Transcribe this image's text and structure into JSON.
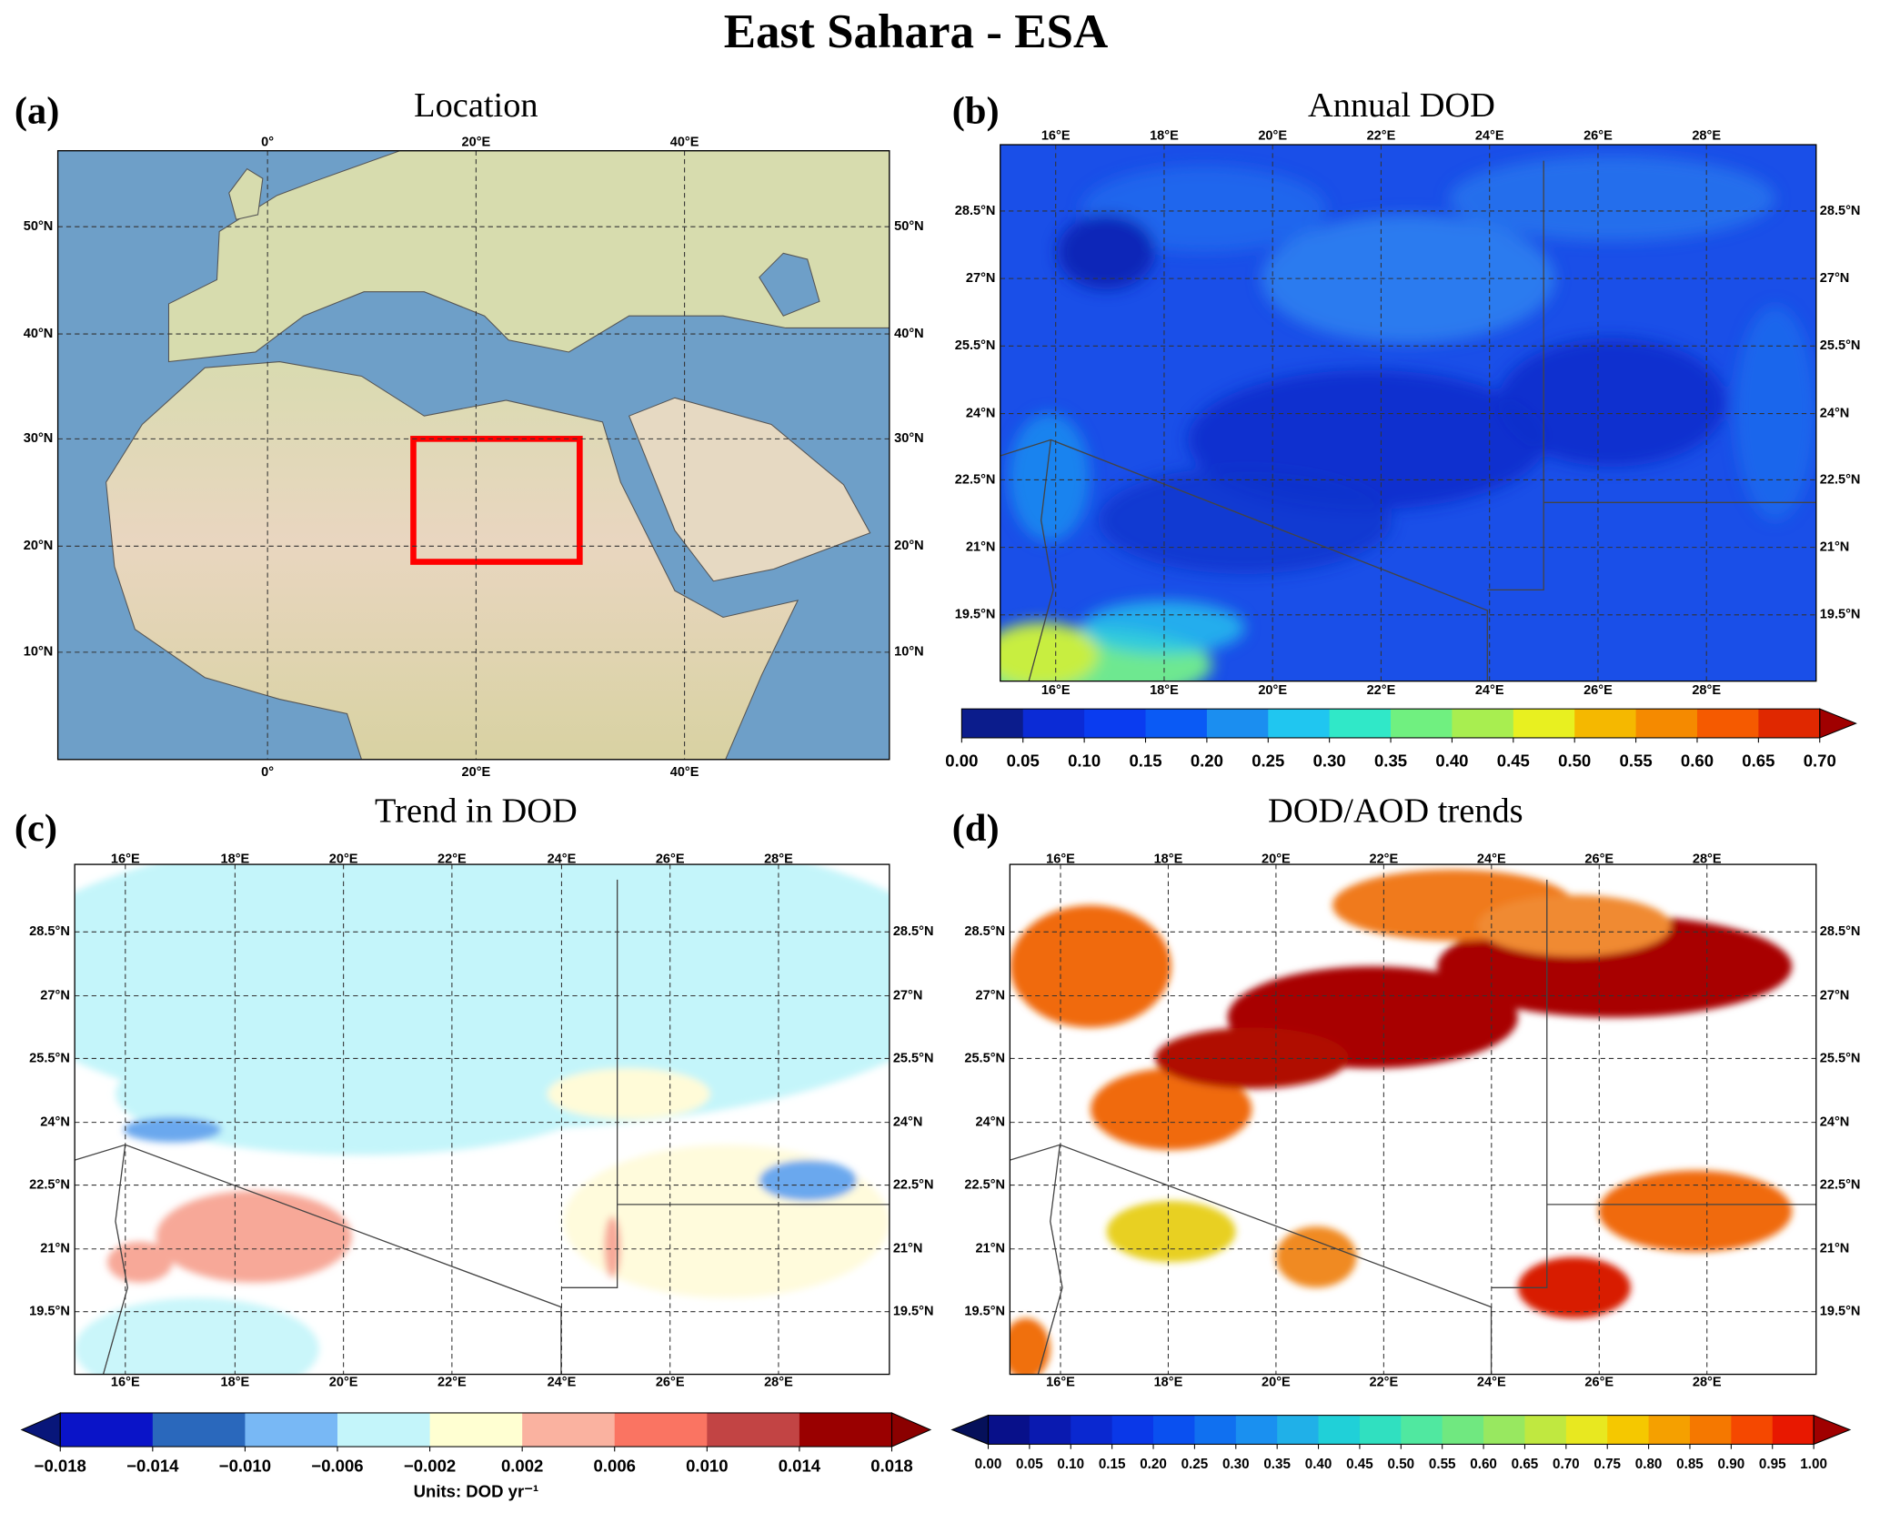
{
  "title": "East Sahara - ESA",
  "panels": [
    {
      "label": "(a)",
      "title": "Location",
      "xticks": [
        "0°",
        "20°E",
        "40°E"
      ],
      "yticks": [
        "50°N",
        "40°N",
        "30°N",
        "20°N",
        "10°N"
      ]
    },
    {
      "label": "(b)",
      "title": "Annual DOD",
      "xticks": [
        "16°E",
        "18°E",
        "20°E",
        "22°E",
        "24°E",
        "26°E",
        "28°E"
      ],
      "yticks": [
        "28.5°N",
        "27°N",
        "25.5°N",
        "24°N",
        "22.5°N",
        "21°N",
        "19.5°N"
      ],
      "colorbar": {
        "ticks": [
          "0.00",
          "0.05",
          "0.10",
          "0.15",
          "0.20",
          "0.25",
          "0.30",
          "0.35",
          "0.40",
          "0.45",
          "0.50",
          "0.55",
          "0.60",
          "0.65",
          "0.70"
        ],
        "colors": [
          "#0b1c8c",
          "#0b2bd6",
          "#0a3cf0",
          "#0a5af5",
          "#1b8ef0",
          "#20c6f0",
          "#30e8c8",
          "#70f080",
          "#a8ee50",
          "#e8f020",
          "#f5b800",
          "#f58a00",
          "#f55a00",
          "#e02800"
        ],
        "over": "#a00000"
      }
    },
    {
      "label": "(c)",
      "title": "Trend in DOD",
      "xticks": [
        "16°E",
        "18°E",
        "20°E",
        "22°E",
        "24°E",
        "26°E",
        "28°E"
      ],
      "yticks": [
        "28.5°N",
        "27°N",
        "25.5°N",
        "24°N",
        "22.5°N",
        "21°N",
        "19.5°N"
      ],
      "colorbar": {
        "ticks": [
          "−0.018",
          "−0.014",
          "−0.010",
          "−0.006",
          "−0.002",
          "0.002",
          "0.006",
          "0.010",
          "0.014",
          "0.018"
        ],
        "colors": [
          "#0a14c8",
          "#2a68bc",
          "#78b8f5",
          "#c4f5fa",
          "#ffffd2",
          "#fab2a0",
          "#fa7462",
          "#c24444",
          "#9a0000"
        ],
        "under": "#08167a",
        "over": "#8b0000",
        "units": "Units: DOD yr⁻¹"
      }
    },
    {
      "label": "(d)",
      "title": "DOD/AOD trends",
      "xticks": [
        "16°E",
        "18°E",
        "20°E",
        "22°E",
        "24°E",
        "26°E",
        "28°E"
      ],
      "yticks": [
        "28.5°N",
        "27°N",
        "25.5°N",
        "24°N",
        "22.5°N",
        "21°N",
        "19.5°N"
      ],
      "colorbar": {
        "ticks": [
          "0.00",
          "0.05",
          "0.10",
          "0.15",
          "0.20",
          "0.25",
          "0.30",
          "0.35",
          "0.40",
          "0.45",
          "0.50",
          "0.55",
          "0.60",
          "0.65",
          "0.70",
          "0.75",
          "0.80",
          "0.85",
          "0.90",
          "0.95",
          "1.00"
        ],
        "colors": [
          "#08108a",
          "#0a1ab0",
          "#0a28d0",
          "#0a38e8",
          "#0a50f0",
          "#1070f0",
          "#1a90f0",
          "#20b0e8",
          "#20d0d8",
          "#30e0c0",
          "#50e8a0",
          "#70e880",
          "#98e860",
          "#c0e840",
          "#e8e820",
          "#f5c800",
          "#f5a000",
          "#f57800",
          "#f54800",
          "#e81800"
        ],
        "under": "#05105a",
        "over": "#a00000"
      }
    }
  ]
}
